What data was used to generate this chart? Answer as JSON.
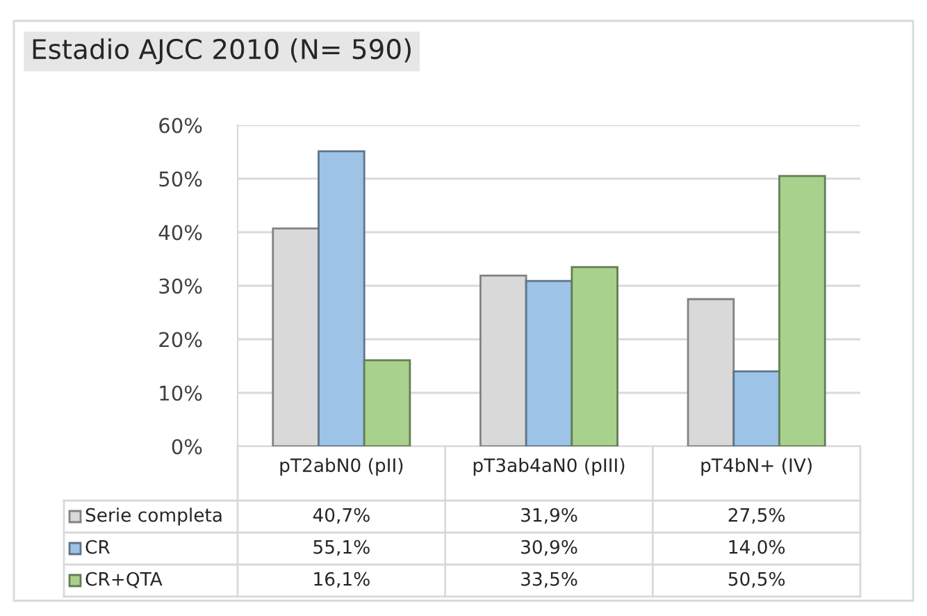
{
  "chart_data": {
    "type": "bar",
    "title": "Estadio AJCC 2010 (N= 590)",
    "categories": [
      "pT2abN0 (pII)",
      "pT3ab4aN0 (pIII)",
      "pT4bN+ (IV)"
    ],
    "series": [
      {
        "name": "Serie completa",
        "color": "#d9d9d9",
        "values": [
          40.7,
          31.9,
          27.5
        ],
        "value_labels": [
          "40,7%",
          "31,9%",
          "27,5%"
        ]
      },
      {
        "name": "CR",
        "color": "#9dc3e6",
        "values": [
          55.1,
          30.9,
          14.0
        ],
        "value_labels": [
          "55,1%",
          "30,9%",
          "14,0%"
        ]
      },
      {
        "name": "CR+QTA",
        "color": "#a9d18e",
        "values": [
          16.1,
          33.5,
          50.5
        ],
        "value_labels": [
          "16,1%",
          "33,5%",
          "50,5%"
        ]
      }
    ],
    "ylim": [
      0,
      60
    ],
    "yticks": [
      {
        "value": 0,
        "label": "0%"
      },
      {
        "value": 10,
        "label": "10%"
      },
      {
        "value": 20,
        "label": "20%"
      },
      {
        "value": 30,
        "label": "30%"
      },
      {
        "value": 40,
        "label": "40%"
      },
      {
        "value": 50,
        "label": "50%"
      },
      {
        "value": 60,
        "label": "60%"
      }
    ],
    "grid": "y",
    "legend": "bottom"
  }
}
